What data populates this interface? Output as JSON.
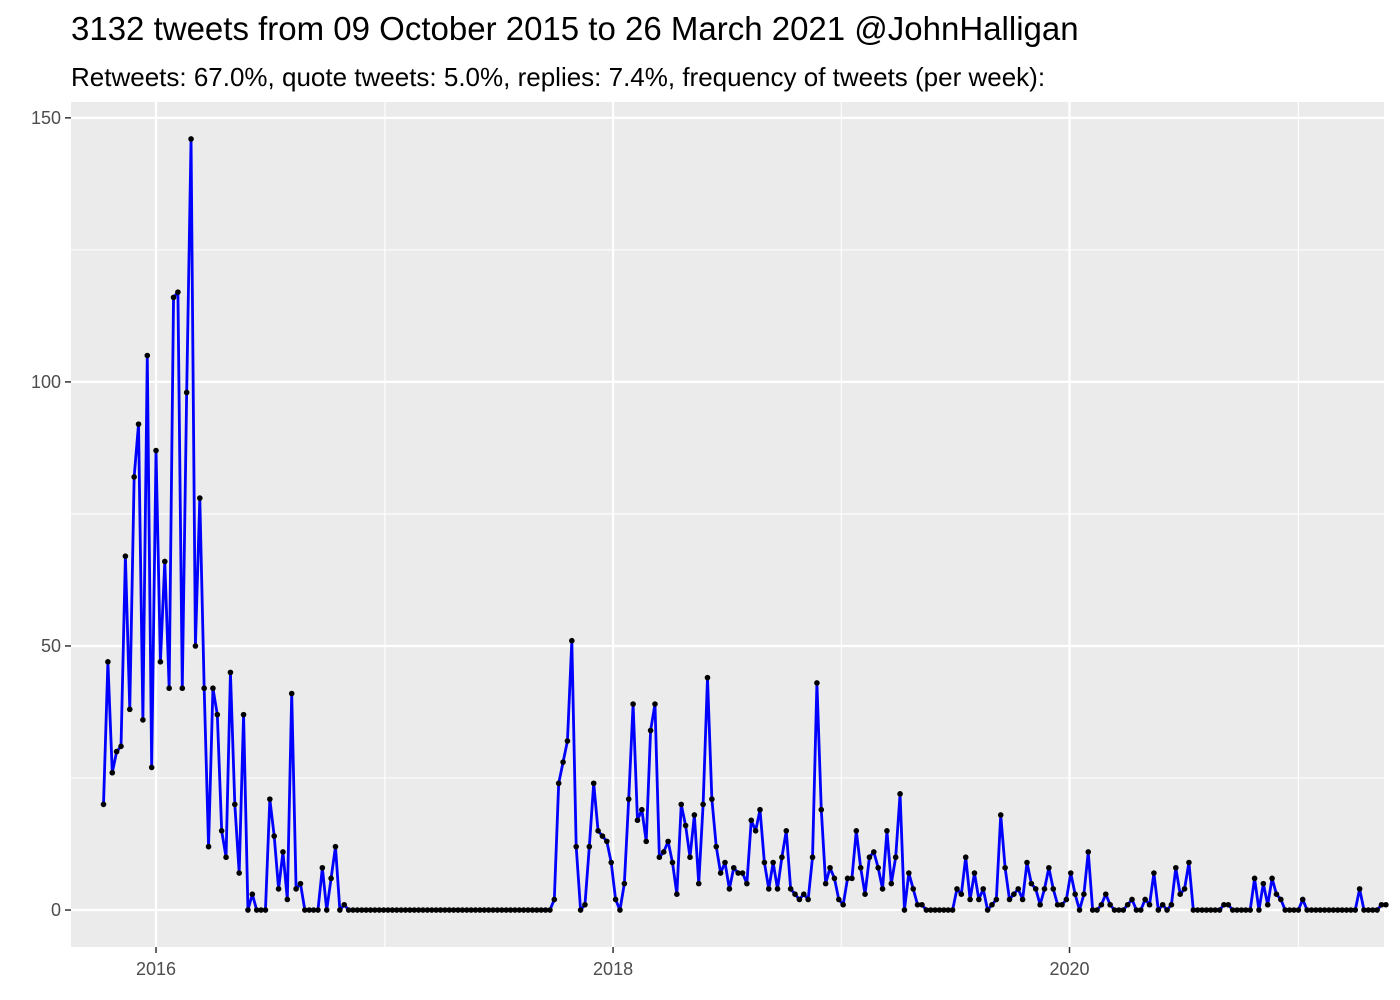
{
  "chart_data": {
    "type": "line",
    "title": "3132 tweets from 09 October 2015 to 26 March 2021 @JohnHalligan",
    "subtitle": "Retweets: 67.0%, quote tweets: 5.0%, replies: 7.4%, frequency of tweets (per week):",
    "xlabel": "",
    "ylabel": "",
    "x_start": "2015-10-09",
    "x_interval_days": 7,
    "xlim": [
      "2015-08-18",
      "2021-05-18"
    ],
    "ylim": [
      -7,
      153
    ],
    "x_ticks": [
      {
        "label": "2016",
        "date": "2016-01-01"
      },
      {
        "label": "2018",
        "date": "2018-01-01"
      },
      {
        "label": "2020",
        "date": "2020-01-01"
      }
    ],
    "x_minor_ticks": [
      "2017-01-01",
      "2019-01-01",
      "2021-01-01"
    ],
    "y_ticks": [
      0,
      50,
      100,
      150
    ],
    "y_minor_ticks": [
      25,
      75,
      125
    ],
    "grid": true,
    "line_color": "#0000ff",
    "point_color": "#000000",
    "panel_color": "#ebebeb",
    "series": [
      {
        "values": [
          20,
          47,
          26,
          30,
          31,
          67,
          38,
          82,
          92,
          36,
          105,
          27,
          87,
          47,
          66,
          42,
          116,
          117,
          42,
          98,
          146,
          50,
          78,
          42,
          12,
          42,
          37,
          15,
          10,
          45,
          20,
          7,
          37,
          0,
          3,
          0,
          0,
          0,
          21,
          14,
          4,
          11,
          2,
          41,
          4,
          5,
          0,
          0,
          0,
          0,
          8,
          0,
          6,
          12,
          0,
          1,
          0,
          0,
          0,
          0,
          0,
          0,
          0,
          0,
          0,
          0,
          0,
          0,
          0,
          0,
          0,
          0,
          0,
          0,
          0,
          0,
          0,
          0,
          0,
          0,
          0,
          0,
          0,
          0,
          0,
          0,
          0,
          0,
          0,
          0,
          0,
          0,
          0,
          0,
          0,
          0,
          0,
          0,
          0,
          0,
          0,
          0,
          0,
          2,
          24,
          28,
          32,
          51,
          12,
          0,
          1,
          12,
          24,
          15,
          14,
          13,
          9,
          2,
          0,
          5,
          21,
          39,
          17,
          19,
          13,
          34,
          39,
          10,
          11,
          13,
          9,
          3,
          20,
          16,
          10,
          18,
          5,
          20,
          44,
          21,
          12,
          7,
          9,
          4,
          8,
          7,
          7,
          5,
          17,
          15,
          19,
          9,
          4,
          9,
          4,
          10,
          15,
          4,
          3,
          2,
          3,
          2,
          10,
          43,
          19,
          5,
          8,
          6,
          2,
          1,
          6,
          6,
          15,
          8,
          3,
          10,
          11,
          8,
          4,
          15,
          5,
          10,
          22,
          0,
          7,
          4,
          1,
          1,
          0,
          0,
          0,
          0,
          0,
          0,
          0,
          4,
          3,
          10,
          2,
          7,
          2,
          4,
          0,
          1,
          2,
          18,
          8,
          2,
          3,
          4,
          2,
          9,
          5,
          4,
          1,
          4,
          8,
          4,
          1,
          1,
          2,
          7,
          3,
          0,
          3,
          11,
          0,
          0,
          1,
          3,
          1,
          0,
          0,
          0,
          1,
          2,
          0,
          0,
          2,
          1,
          7,
          0,
          1,
          0,
          1,
          8,
          3,
          4,
          9,
          0,
          0,
          0,
          0,
          0,
          0,
          0,
          1,
          1,
          0,
          0,
          0,
          0,
          0,
          6,
          0,
          5,
          1,
          6,
          3,
          2,
          0,
          0,
          0,
          0,
          2,
          0,
          0,
          0,
          0,
          0,
          0,
          0,
          0,
          0,
          0,
          0,
          0,
          4,
          0,
          0,
          0,
          0,
          1,
          1
        ]
      }
    ]
  }
}
